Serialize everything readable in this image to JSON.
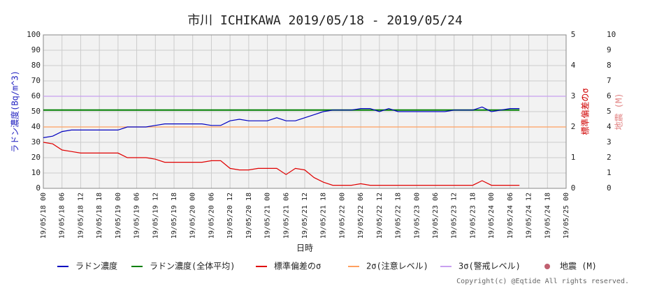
{
  "chart_data": {
    "type": "line",
    "title": "市川 ICHIKAWA 2019/05/18 - 2019/05/24",
    "x_label": "日時",
    "y_label": "ラドン濃度(Bq/m^3)",
    "y2_label": "標準偏差のσ",
    "y3_label": "地震 (M)",
    "copyright": "Copyright(c) @Eqtide All rights reserved.",
    "grid": true,
    "xlim": [
      0,
      168
    ],
    "xticks": [
      {
        "value": 0,
        "label": "19/05/18 00"
      },
      {
        "value": 6,
        "label": "19/05/18 06"
      },
      {
        "value": 12,
        "label": "19/05/18 12"
      },
      {
        "value": 18,
        "label": "19/05/18 18"
      },
      {
        "value": 24,
        "label": "19/05/19 00"
      },
      {
        "value": 30,
        "label": "19/05/19 06"
      },
      {
        "value": 36,
        "label": "19/05/19 12"
      },
      {
        "value": 42,
        "label": "19/05/19 18"
      },
      {
        "value": 48,
        "label": "19/05/20 00"
      },
      {
        "value": 54,
        "label": "19/05/20 06"
      },
      {
        "value": 60,
        "label": "19/05/20 12"
      },
      {
        "value": 66,
        "label": "19/05/20 18"
      },
      {
        "value": 72,
        "label": "19/05/21 00"
      },
      {
        "value": 78,
        "label": "19/05/21 06"
      },
      {
        "value": 84,
        "label": "19/05/21 12"
      },
      {
        "value": 90,
        "label": "19/05/21 18"
      },
      {
        "value": 96,
        "label": "19/05/22 00"
      },
      {
        "value": 102,
        "label": "19/05/22 06"
      },
      {
        "value": 108,
        "label": "19/05/22 12"
      },
      {
        "value": 114,
        "label": "19/05/22 18"
      },
      {
        "value": 120,
        "label": "19/05/23 00"
      },
      {
        "value": 126,
        "label": "19/05/23 06"
      },
      {
        "value": 132,
        "label": "19/05/23 12"
      },
      {
        "value": 138,
        "label": "19/05/23 18"
      },
      {
        "value": 144,
        "label": "19/05/24 00"
      },
      {
        "value": 150,
        "label": "19/05/24 06"
      },
      {
        "value": 156,
        "label": "19/05/24 12"
      },
      {
        "value": 162,
        "label": "19/05/24 18"
      },
      {
        "value": 168,
        "label": "19/05/25 00"
      }
    ],
    "ylim": [
      0,
      100
    ],
    "yticks": [
      0,
      10,
      20,
      30,
      40,
      50,
      60,
      70,
      80,
      90,
      100
    ],
    "y2lim": [
      0,
      5
    ],
    "y2ticks": [
      0,
      1,
      2,
      3,
      4,
      5
    ],
    "y3lim": [
      0,
      10
    ],
    "y3ticks": [
      0,
      1,
      2,
      3,
      4,
      5,
      6,
      7,
      8,
      9,
      10
    ],
    "x": [
      0,
      3,
      6,
      9,
      12,
      15,
      18,
      21,
      24,
      27,
      30,
      33,
      36,
      39,
      42,
      45,
      48,
      51,
      54,
      57,
      60,
      63,
      66,
      69,
      72,
      75,
      78,
      81,
      84,
      87,
      90,
      93,
      96,
      99,
      102,
      105,
      108,
      111,
      114,
      117,
      120,
      123,
      126,
      129,
      132,
      135,
      138,
      141,
      144,
      147,
      150,
      153
    ],
    "series": [
      {
        "name": "ラドン濃度",
        "color": "#0000c0",
        "values": [
          33,
          34,
          37,
          38,
          38,
          38,
          38,
          38,
          38,
          40,
          40,
          40,
          41,
          42,
          42,
          42,
          42,
          42,
          41,
          41,
          44,
          45,
          44,
          44,
          44,
          46,
          44,
          44,
          46,
          48,
          50,
          51,
          51,
          51,
          52,
          52,
          50,
          52,
          50,
          50,
          50,
          50,
          50,
          50,
          51,
          51,
          51,
          53,
          50,
          51,
          52,
          52
        ]
      },
      {
        "name": "ラドン濃度(全体平均)",
        "color": "#008000",
        "x": [
          0,
          153
        ],
        "values": [
          51,
          51
        ]
      },
      {
        "name": "標準偏差のσ",
        "color": "#e00000",
        "axis": "y2",
        "values": [
          1.5,
          1.45,
          1.25,
          1.2,
          1.15,
          1.15,
          1.15,
          1.15,
          1.15,
          1.0,
          1.0,
          1.0,
          0.95,
          0.85,
          0.85,
          0.85,
          0.85,
          0.85,
          0.9,
          0.9,
          0.65,
          0.6,
          0.6,
          0.65,
          0.65,
          0.65,
          0.45,
          0.65,
          0.6,
          0.35,
          0.2,
          0.1,
          0.1,
          0.1,
          0.15,
          0.1,
          0.1,
          0.1,
          0.1,
          0.1,
          0.1,
          0.1,
          0.1,
          0.1,
          0.1,
          0.1,
          0.1,
          0.25,
          0.1,
          0.1,
          0.1,
          0.1
        ]
      },
      {
        "name": "2σ(注意レベル)",
        "color": "#ffa060",
        "axis": "y2",
        "x": [
          0,
          168
        ],
        "values": [
          2,
          2
        ]
      },
      {
        "name": "3σ(警戒レベル)",
        "color": "#c8a0f0",
        "axis": "y2",
        "x": [
          0,
          168
        ],
        "values": [
          3,
          3
        ]
      },
      {
        "name": "地震 (M)",
        "color": "#c06070",
        "axis": "y3",
        "marker": "circle",
        "x": [],
        "values": []
      }
    ]
  }
}
